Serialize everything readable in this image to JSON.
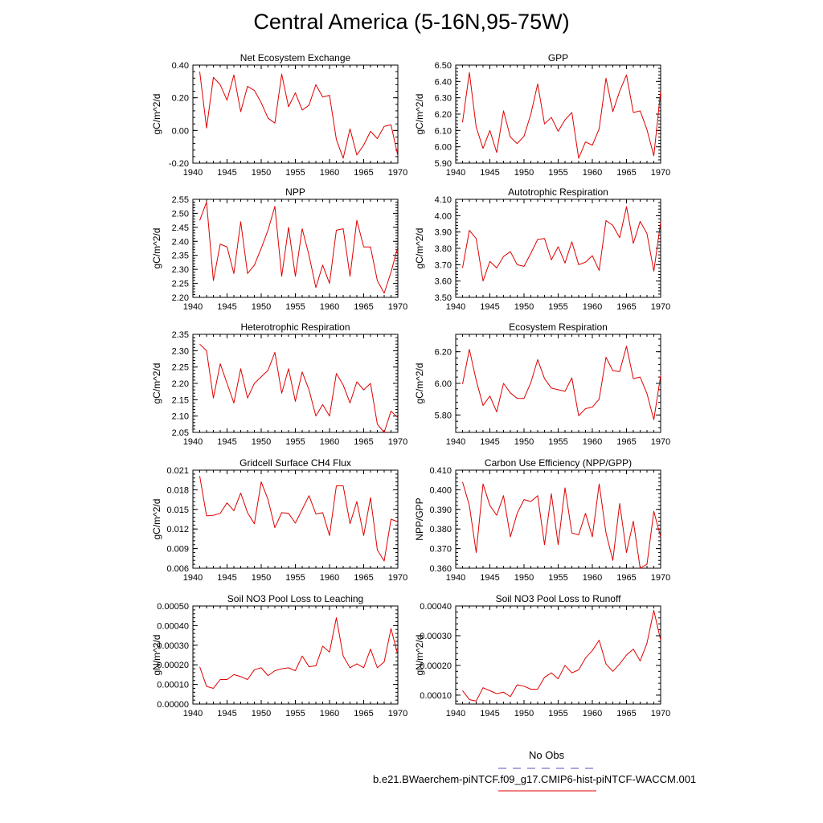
{
  "page": {
    "title": "Central America (5-16N,95-75W)"
  },
  "legend": {
    "obs_label": "No Obs",
    "obs_color": "#5050c0",
    "model_label": "b.e21.BWaerchem-piNTCF.f09_g17.CMIP6-hist-piNTCF-WACCM.001",
    "model_color": "#e00000"
  },
  "chart_data": [
    {
      "type": "line",
      "title": "Net Ecosystem Exchange",
      "ylabel": "gC/m^2/d",
      "xlim": [
        1940,
        1970
      ],
      "ylim": [
        -0.2,
        0.4
      ],
      "xticks": [
        1940,
        1945,
        1950,
        1955,
        1960,
        1965,
        1970
      ],
      "yticks": [
        -0.2,
        0.0,
        0.2,
        0.4
      ],
      "ytick_labels": [
        "-0.20",
        "0.00",
        "0.20",
        "0.40"
      ],
      "grid": false,
      "series": [
        {
          "color": "#e00000",
          "x": [
            1941,
            1942,
            1943,
            1944,
            1945,
            1946,
            1947,
            1948,
            1949,
            1950,
            1951,
            1952,
            1953,
            1954,
            1955,
            1956,
            1957,
            1958,
            1959,
            1960,
            1961,
            1962,
            1963,
            1964,
            1965,
            1966,
            1967,
            1968,
            1969,
            1970
          ],
          "y": [
            0.36,
            0.015,
            0.325,
            0.28,
            0.185,
            0.34,
            0.115,
            0.27,
            0.245,
            0.17,
            0.075,
            0.045,
            0.345,
            0.145,
            0.23,
            0.125,
            0.155,
            0.28,
            0.205,
            0.215,
            -0.055,
            -0.17,
            0.01,
            -0.15,
            -0.09,
            -0.005,
            -0.05,
            0.025,
            0.035,
            -0.155
          ]
        }
      ]
    },
    {
      "type": "line",
      "title": "GPP",
      "ylabel": "gC/m^2/d",
      "xlim": [
        1940,
        1970
      ],
      "ylim": [
        5.9,
        6.5
      ],
      "xticks": [
        1940,
        1945,
        1950,
        1955,
        1960,
        1965,
        1970
      ],
      "yticks": [
        5.9,
        6.0,
        6.1,
        6.2,
        6.3,
        6.4,
        6.5
      ],
      "ytick_labels": [
        "5.90",
        "6.00",
        "6.10",
        "6.20",
        "6.30",
        "6.40",
        "6.50"
      ],
      "grid": false,
      "series": [
        {
          "color": "#e00000",
          "x": [
            1941,
            1942,
            1943,
            1944,
            1945,
            1946,
            1947,
            1948,
            1949,
            1950,
            1951,
            1952,
            1953,
            1954,
            1955,
            1956,
            1957,
            1958,
            1959,
            1960,
            1961,
            1962,
            1963,
            1964,
            1965,
            1966,
            1967,
            1968,
            1969,
            1970
          ],
          "y": [
            6.15,
            6.455,
            6.12,
            5.99,
            6.1,
            5.965,
            6.22,
            6.06,
            6.02,
            6.065,
            6.2,
            6.385,
            6.14,
            6.18,
            6.095,
            6.165,
            6.21,
            5.93,
            6.03,
            6.01,
            6.11,
            6.42,
            6.215,
            6.34,
            6.44,
            6.21,
            6.22,
            6.105,
            5.945,
            6.34
          ]
        }
      ]
    },
    {
      "type": "line",
      "title": "NPP",
      "ylabel": "gC/m^2/d",
      "xlim": [
        1940,
        1970
      ],
      "ylim": [
        2.2,
        2.55
      ],
      "xticks": [
        1940,
        1945,
        1950,
        1955,
        1960,
        1965,
        1970
      ],
      "yticks": [
        2.2,
        2.25,
        2.3,
        2.35,
        2.4,
        2.45,
        2.5,
        2.55
      ],
      "ytick_labels": [
        "2.20",
        "2.25",
        "2.30",
        "2.35",
        "2.40",
        "2.45",
        "2.50",
        "2.55"
      ],
      "grid": false,
      "series": [
        {
          "color": "#e00000",
          "x": [
            1941,
            1942,
            1943,
            1944,
            1945,
            1946,
            1947,
            1948,
            1949,
            1950,
            1951,
            1952,
            1953,
            1954,
            1955,
            1956,
            1957,
            1958,
            1959,
            1960,
            1961,
            1962,
            1963,
            1964,
            1965,
            1966,
            1967,
            1968,
            1969,
            1970
          ],
          "y": [
            2.475,
            2.54,
            2.26,
            2.39,
            2.38,
            2.285,
            2.47,
            2.285,
            2.315,
            2.375,
            2.44,
            2.525,
            2.275,
            2.45,
            2.275,
            2.445,
            2.35,
            2.235,
            2.315,
            2.25,
            2.44,
            2.445,
            2.275,
            2.475,
            2.38,
            2.38,
            2.26,
            2.215,
            2.29,
            2.38
          ]
        }
      ]
    },
    {
      "type": "line",
      "title": "Autotrophic Respiration",
      "ylabel": "gC/m^2/d",
      "xlim": [
        1940,
        1970
      ],
      "ylim": [
        3.5,
        4.1
      ],
      "xticks": [
        1940,
        1945,
        1950,
        1955,
        1960,
        1965,
        1970
      ],
      "yticks": [
        3.5,
        3.6,
        3.7,
        3.8,
        3.9,
        4.0,
        4.1
      ],
      "ytick_labels": [
        "3.50",
        "3.60",
        "3.70",
        "3.80",
        "3.90",
        "4.00",
        "4.10"
      ],
      "grid": false,
      "series": [
        {
          "color": "#e00000",
          "x": [
            1941,
            1942,
            1943,
            1944,
            1945,
            1946,
            1947,
            1948,
            1949,
            1950,
            1951,
            1952,
            1953,
            1954,
            1955,
            1956,
            1957,
            1958,
            1959,
            1960,
            1961,
            1962,
            1963,
            1964,
            1965,
            1966,
            1967,
            1968,
            1969,
            1970
          ],
          "y": [
            3.68,
            3.91,
            3.86,
            3.6,
            3.72,
            3.68,
            3.75,
            3.78,
            3.7,
            3.69,
            3.77,
            3.855,
            3.86,
            3.73,
            3.81,
            3.71,
            3.84,
            3.7,
            3.715,
            3.755,
            3.665,
            3.97,
            3.94,
            3.865,
            4.055,
            3.83,
            3.965,
            3.89,
            3.66,
            3.96
          ]
        }
      ]
    },
    {
      "type": "line",
      "title": "Heterotrophic Respiration",
      "ylabel": "gC/m^2/d",
      "xlim": [
        1940,
        1970
      ],
      "ylim": [
        2.05,
        2.35
      ],
      "xticks": [
        1940,
        1945,
        1950,
        1955,
        1960,
        1965,
        1970
      ],
      "yticks": [
        2.05,
        2.1,
        2.15,
        2.2,
        2.25,
        2.3,
        2.35
      ],
      "ytick_labels": [
        "2.05",
        "2.10",
        "2.15",
        "2.20",
        "2.25",
        "2.30",
        "2.35"
      ],
      "grid": false,
      "series": [
        {
          "color": "#e00000",
          "x": [
            1941,
            1942,
            1943,
            1944,
            1945,
            1946,
            1947,
            1948,
            1949,
            1950,
            1951,
            1952,
            1953,
            1954,
            1955,
            1956,
            1957,
            1958,
            1959,
            1960,
            1961,
            1962,
            1963,
            1964,
            1965,
            1966,
            1967,
            1968,
            1969,
            1970
          ],
          "y": [
            2.32,
            2.3,
            2.155,
            2.26,
            2.2,
            2.14,
            2.245,
            2.155,
            2.2,
            2.22,
            2.24,
            2.295,
            2.17,
            2.245,
            2.145,
            2.235,
            2.18,
            2.1,
            2.135,
            2.1,
            2.23,
            2.195,
            2.14,
            2.205,
            2.18,
            2.2,
            2.075,
            2.05,
            2.115,
            2.095
          ]
        }
      ]
    },
    {
      "type": "line",
      "title": "Ecosystem Respiration",
      "ylabel": "gC/m^2/d",
      "xlim": [
        1940,
        1970
      ],
      "ylim": [
        5.69,
        6.31
      ],
      "xticks": [
        1940,
        1945,
        1950,
        1955,
        1960,
        1965,
        1970
      ],
      "yticks": [
        5.8,
        6.0,
        6.2
      ],
      "ytick_labels": [
        "5.80",
        "6.00",
        "6.20"
      ],
      "grid": false,
      "series": [
        {
          "color": "#e00000",
          "x": [
            1941,
            1942,
            1943,
            1944,
            1945,
            1946,
            1947,
            1948,
            1949,
            1950,
            1951,
            1952,
            1953,
            1954,
            1955,
            1956,
            1957,
            1958,
            1959,
            1960,
            1961,
            1962,
            1963,
            1964,
            1965,
            1966,
            1967,
            1968,
            1969,
            1970
          ],
          "y": [
            5.995,
            6.215,
            6.02,
            5.86,
            5.92,
            5.82,
            6.0,
            5.94,
            5.905,
            5.905,
            6.005,
            6.15,
            6.03,
            5.97,
            5.96,
            5.95,
            6.035,
            5.795,
            5.84,
            5.85,
            5.9,
            6.165,
            6.08,
            6.075,
            6.235,
            6.03,
            6.04,
            5.935,
            5.77,
            6.05
          ]
        }
      ]
    },
    {
      "type": "line",
      "title": "Gridcell Surface CH4 Flux",
      "ylabel": "gC/m^2/d",
      "xlim": [
        1940,
        1970
      ],
      "ylim": [
        0.006,
        0.021
      ],
      "xticks": [
        1940,
        1945,
        1950,
        1955,
        1960,
        1965,
        1970
      ],
      "yticks": [
        0.006,
        0.009,
        0.012,
        0.015,
        0.018,
        0.021
      ],
      "ytick_labels": [
        "0.006",
        "0.009",
        "0.012",
        "0.015",
        "0.018",
        "0.021"
      ],
      "grid": false,
      "series": [
        {
          "color": "#e00000",
          "x": [
            1941,
            1942,
            1943,
            1944,
            1945,
            1946,
            1947,
            1948,
            1949,
            1950,
            1951,
            1952,
            1953,
            1954,
            1955,
            1956,
            1957,
            1958,
            1959,
            1960,
            1961,
            1962,
            1963,
            1964,
            1965,
            1966,
            1967,
            1968,
            1969,
            1970
          ],
          "y": [
            0.0201,
            0.014,
            0.0141,
            0.0144,
            0.016,
            0.0148,
            0.0175,
            0.0145,
            0.0128,
            0.0192,
            0.0165,
            0.0122,
            0.0145,
            0.0144,
            0.0129,
            0.015,
            0.0171,
            0.0143,
            0.0145,
            0.011,
            0.0186,
            0.0186,
            0.0128,
            0.0162,
            0.011,
            0.0168,
            0.0088,
            0.0071,
            0.0135,
            0.0131
          ]
        }
      ]
    },
    {
      "type": "line",
      "title": "Carbon Use Efficiency (NPP/GPP)",
      "ylabel": "NPP/GPP",
      "xlim": [
        1940,
        1970
      ],
      "ylim": [
        0.36,
        0.41
      ],
      "xticks": [
        1940,
        1945,
        1950,
        1955,
        1960,
        1965,
        1970
      ],
      "yticks": [
        0.36,
        0.37,
        0.38,
        0.39,
        0.4,
        0.41
      ],
      "ytick_labels": [
        "0.360",
        "0.370",
        "0.380",
        "0.390",
        "0.400",
        "0.410"
      ],
      "grid": false,
      "series": [
        {
          "color": "#e00000",
          "x": [
            1941,
            1942,
            1943,
            1944,
            1945,
            1946,
            1947,
            1948,
            1949,
            1950,
            1951,
            1952,
            1953,
            1954,
            1955,
            1956,
            1957,
            1958,
            1959,
            1960,
            1961,
            1962,
            1963,
            1964,
            1965,
            1966,
            1967,
            1968,
            1969,
            1970
          ],
          "y": [
            0.404,
            0.392,
            0.368,
            0.403,
            0.392,
            0.387,
            0.397,
            0.376,
            0.388,
            0.395,
            0.394,
            0.397,
            0.372,
            0.398,
            0.372,
            0.401,
            0.378,
            0.377,
            0.388,
            0.376,
            0.403,
            0.378,
            0.364,
            0.393,
            0.368,
            0.384,
            0.36,
            0.362,
            0.389,
            0.376
          ]
        }
      ]
    },
    {
      "type": "line",
      "title": "Soil NO3 Pool Loss to Leaching",
      "ylabel": "gN/m^2/d",
      "xlim": [
        1940,
        1970
      ],
      "ylim": [
        0.0,
        0.0005
      ],
      "xticks": [
        1940,
        1945,
        1950,
        1955,
        1960,
        1965,
        1970
      ],
      "yticks": [
        0.0,
        0.0001,
        0.0002,
        0.0003,
        0.0004,
        0.0005
      ],
      "ytick_labels": [
        "0.00000",
        "0.00010",
        "0.00020",
        "0.00030",
        "0.00040",
        "0.00050"
      ],
      "grid": false,
      "series": [
        {
          "color": "#e00000",
          "x": [
            1941,
            1942,
            1943,
            1944,
            1945,
            1946,
            1947,
            1948,
            1949,
            1950,
            1951,
            1952,
            1953,
            1954,
            1955,
            1956,
            1957,
            1958,
            1959,
            1960,
            1961,
            1962,
            1963,
            1964,
            1965,
            1966,
            1967,
            1968,
            1969,
            1970
          ],
          "y": [
            0.00019,
            9e-05,
            8e-05,
            0.000125,
            0.000125,
            0.00015,
            0.00014,
            0.000125,
            0.000175,
            0.000185,
            0.000145,
            0.00017,
            0.00018,
            0.000185,
            0.00017,
            0.000245,
            0.00019,
            0.000195,
            0.000295,
            0.000265,
            0.00044,
            0.000245,
            0.000185,
            0.000205,
            0.000185,
            0.00028,
            0.000185,
            0.000215,
            0.000385,
            0.00025
          ]
        }
      ]
    },
    {
      "type": "line",
      "title": "Soil NO3 Pool Loss to Runoff",
      "ylabel": "gN/m^2/d",
      "xlim": [
        1940,
        1970
      ],
      "ylim": [
        7e-05,
        0.0004
      ],
      "xticks": [
        1940,
        1945,
        1950,
        1955,
        1960,
        1965,
        1970
      ],
      "yticks": [
        0.0001,
        0.0002,
        0.0003,
        0.0004
      ],
      "ytick_labels": [
        "0.00010",
        "0.00020",
        "0.00030",
        "0.00040"
      ],
      "grid": false,
      "series": [
        {
          "color": "#e00000",
          "x": [
            1941,
            1942,
            1943,
            1944,
            1945,
            1946,
            1947,
            1948,
            1949,
            1950,
            1951,
            1952,
            1953,
            1954,
            1955,
            1956,
            1957,
            1958,
            1959,
            1960,
            1961,
            1962,
            1963,
            1964,
            1965,
            1966,
            1967,
            1968,
            1969,
            1970
          ],
          "y": [
            0.000115,
            8.5e-05,
            8e-05,
            0.000125,
            0.000115,
            0.000105,
            0.00011,
            9.5e-05,
            0.000135,
            0.00013,
            0.00012,
            0.00012,
            0.00016,
            0.000175,
            0.000155,
            0.0002,
            0.000175,
            0.000185,
            0.000225,
            0.00025,
            0.000285,
            0.000205,
            0.00018,
            0.000205,
            0.000235,
            0.000255,
            0.000215,
            0.000275,
            0.000385,
            0.000285
          ]
        }
      ]
    }
  ]
}
